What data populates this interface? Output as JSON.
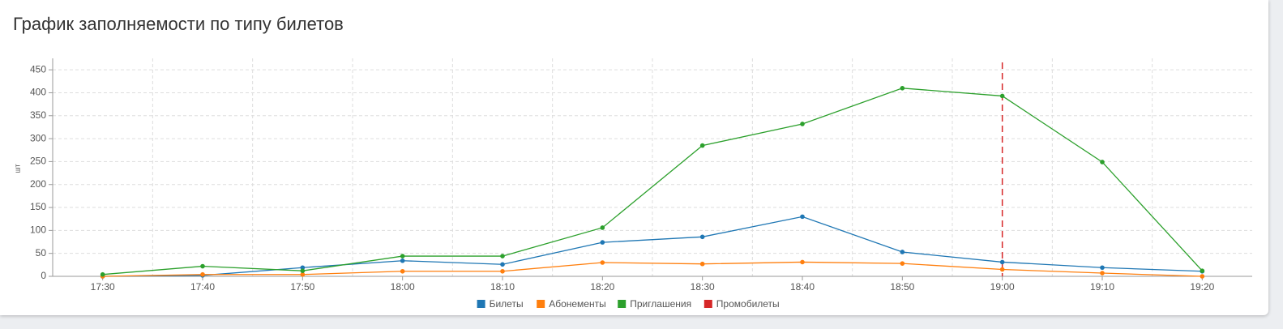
{
  "chart_data": {
    "type": "line",
    "title": "График заполняемости по типу билетов",
    "y_label": "шт",
    "categories": [
      "17:30",
      "17:40",
      "17:50",
      "18:00",
      "18:10",
      "18:20",
      "18:30",
      "18:40",
      "18:50",
      "19:00",
      "19:10",
      "19:20"
    ],
    "series": [
      {
        "name": "Билеты",
        "color": "#1f77b4",
        "values": [
          0,
          2,
          19,
          34,
          26,
          74,
          86,
          130,
          53,
          31,
          19,
          11
        ]
      },
      {
        "name": "Абонементы",
        "color": "#ff7f0e",
        "values": [
          0,
          4,
          4,
          11,
          11,
          30,
          27,
          31,
          28,
          15,
          7,
          0
        ]
      },
      {
        "name": "Приглашения",
        "color": "#2ca02c",
        "values": [
          4,
          22,
          12,
          44,
          44,
          106,
          285,
          332,
          410,
          393,
          249,
          12
        ]
      },
      {
        "name": "Промобилеты",
        "color": "#d62728",
        "values": [
          null,
          null,
          null,
          null,
          null,
          null,
          null,
          null,
          null,
          null,
          null,
          null
        ]
      }
    ],
    "marker_x": "19:00",
    "marker_color": "#d62728",
    "ylim": [
      0,
      475
    ],
    "yticks": [
      0,
      50,
      100,
      150,
      200,
      250,
      300,
      350,
      400,
      450
    ],
    "grid": true
  }
}
